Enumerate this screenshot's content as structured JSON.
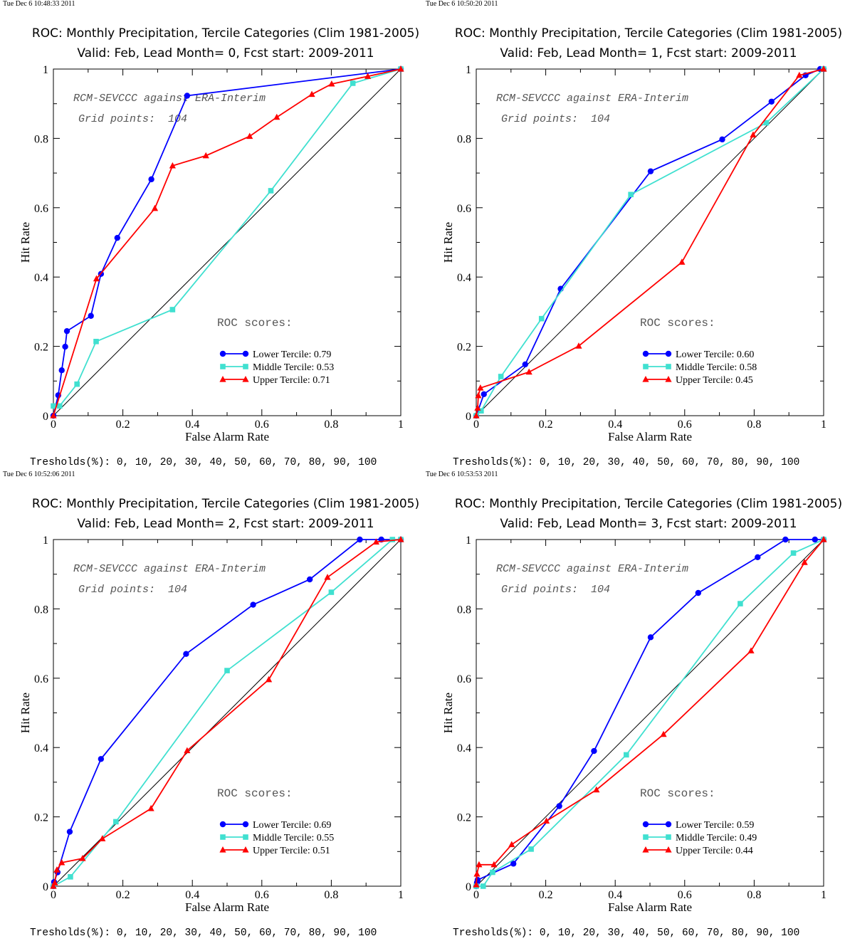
{
  "common": {
    "title_line1": "ROC: Monthly Precipitation, Tercile Categories (Clim 1981-2005)",
    "x_axis_label": "False Alarm Rate",
    "y_axis_label": "Hit Rate",
    "annotation_model": "RCM-SEVCCC against ERA-Interim",
    "annotation_grid": "Grid points:  104",
    "scores_heading": "ROC scores:",
    "thresholds_text": "Tresholds(%): 0, 10, 20, 30, 40, 50, 60, 70, 80, 90, 100",
    "x_ticks": [
      "0",
      "0.2",
      "0.4",
      "0.6",
      "0.8",
      "1"
    ],
    "y_ticks": [
      "0",
      "0.2",
      "0.4",
      "0.6",
      "0.8",
      "1"
    ],
    "colors": {
      "lower": "#0000ff",
      "middle": "#40e0d0",
      "upper": "#ff0000",
      "diagonal": "#000000"
    }
  },
  "panels": [
    {
      "timestamp": "Tue Dec  6 10:48:33 2011",
      "title_line2": "Valid: Feb, Lead Month= 0, Fcst start: 2009-2011",
      "legend": [
        "Lower Tercile: 0.79",
        "Middle Tercile: 0.53",
        "Upper Tercile: 0.71"
      ]
    },
    {
      "timestamp": "Tue Dec  6 10:50:20 2011",
      "title_line2": "Valid: Feb, Lead Month= 1, Fcst start: 2009-2011",
      "legend": [
        "Lower Tercile: 0.60",
        "Middle Tercile: 0.58",
        "Upper Tercile: 0.45"
      ]
    },
    {
      "timestamp": "Tue Dec  6 10:52:06 2011",
      "title_line2": "Valid: Feb, Lead Month= 2, Fcst start: 2009-2011",
      "legend": [
        "Lower Tercile: 0.69",
        "Middle Tercile: 0.55",
        "Upper Tercile: 0.51"
      ]
    },
    {
      "timestamp": "Tue Dec  6 10:53:53 2011",
      "title_line2": "Valid: Feb, Lead Month= 3, Fcst start: 2009-2011",
      "legend": [
        "Lower Tercile: 0.59",
        "Middle Tercile: 0.49",
        "Upper Tercile: 0.44"
      ]
    }
  ],
  "chart_data": [
    {
      "type": "line",
      "title": "ROC: Monthly Precipitation, Tercile Categories (Clim 1981-2005)",
      "subtitle": "Valid: Feb, Lead Month= 0, Fcst start: 2009-2011",
      "xlabel": "False Alarm Rate",
      "ylabel": "Hit Rate",
      "xlim": [
        0,
        1
      ],
      "ylim": [
        0,
        1
      ],
      "grid": false,
      "legend_position": "bottom-right",
      "series": [
        {
          "name": "Lower Tercile: 0.79",
          "marker": "circle",
          "x": [
            0,
            0.014,
            0.024,
            0.034,
            0.039,
            0.108,
            0.137,
            0.184,
            0.282,
            0.385,
            1.0
          ],
          "y": [
            0,
            0.059,
            0.131,
            0.199,
            0.244,
            0.288,
            0.409,
            0.513,
            0.682,
            0.923,
            1.0
          ]
        },
        {
          "name": "Middle Tercile: 0.53",
          "marker": "square",
          "x": [
            0,
            0.018,
            0.068,
            0.123,
            0.343,
            0.626,
            0.862,
            1.0
          ],
          "y": [
            0.028,
            0.028,
            0.091,
            0.214,
            0.306,
            0.649,
            0.959,
            1.0
          ]
        },
        {
          "name": "Upper Tercile: 0.71",
          "marker": "triangle",
          "x": [
            0,
            0.124,
            0.292,
            0.343,
            0.439,
            0.565,
            0.643,
            0.744,
            0.801,
            0.905,
            1.0
          ],
          "y": [
            0,
            0.395,
            0.598,
            0.721,
            0.75,
            0.806,
            0.861,
            0.927,
            0.957,
            0.979,
            1.0
          ]
        }
      ]
    },
    {
      "type": "line",
      "title": "ROC: Monthly Precipitation, Tercile Categories (Clim 1981-2005)",
      "subtitle": "Valid: Feb, Lead Month= 1, Fcst start: 2009-2011",
      "xlabel": "False Alarm Rate",
      "ylabel": "Hit Rate",
      "xlim": [
        0,
        1
      ],
      "ylim": [
        0,
        1
      ],
      "grid": false,
      "legend_position": "bottom-right",
      "series": [
        {
          "name": "Lower Tercile: 0.60",
          "marker": "circle",
          "x": [
            0,
            0.022,
            0.141,
            0.243,
            0.502,
            0.708,
            0.85,
            0.948,
            0.99,
            1.0
          ],
          "y": [
            0,
            0.062,
            0.148,
            0.366,
            0.705,
            0.797,
            0.906,
            0.982,
            1.0,
            1.0
          ]
        },
        {
          "name": "Middle Tercile: 0.58",
          "marker": "square",
          "x": [
            0,
            0.014,
            0.071,
            0.188,
            0.445,
            0.835,
            1.0
          ],
          "y": [
            0,
            0.014,
            0.113,
            0.28,
            0.638,
            0.845,
            1.0
          ]
        },
        {
          "name": "Upper Tercile: 0.45",
          "marker": "triangle",
          "x": [
            0,
            0.004,
            0.006,
            0.012,
            0.152,
            0.295,
            0.592,
            0.797,
            0.93,
            1.0
          ],
          "y": [
            0,
            0.022,
            0.058,
            0.08,
            0.126,
            0.201,
            0.443,
            0.81,
            0.982,
            1.0
          ]
        }
      ]
    },
    {
      "type": "line",
      "title": "ROC: Monthly Precipitation, Tercile Categories (Clim 1981-2005)",
      "subtitle": "Valid: Feb, Lead Month= 2, Fcst start: 2009-2011",
      "xlabel": "False Alarm Rate",
      "ylabel": "Hit Rate",
      "xlim": [
        0,
        1
      ],
      "ylim": [
        0,
        1
      ],
      "grid": false,
      "legend_position": "bottom-right",
      "series": [
        {
          "name": "Lower Tercile: 0.69",
          "marker": "circle",
          "x": [
            0,
            0.002,
            0.012,
            0.047,
            0.137,
            0.382,
            0.575,
            0.738,
            0.882,
            0.944,
            1.0
          ],
          "y": [
            0,
            0.012,
            0.04,
            0.157,
            0.367,
            0.67,
            0.812,
            0.885,
            1.0,
            1.0,
            1.0
          ]
        },
        {
          "name": "Middle Tercile: 0.55",
          "marker": "square",
          "x": [
            0,
            0.049,
            0.18,
            0.5,
            0.8,
            0.976,
            1.0
          ],
          "y": [
            0,
            0.027,
            0.186,
            0.622,
            0.848,
            1.0,
            1.0
          ]
        },
        {
          "name": "Upper Tercile: 0.51",
          "marker": "triangle",
          "x": [
            0,
            0.004,
            0.01,
            0.024,
            0.084,
            0.141,
            0.281,
            0.385,
            0.62,
            0.789,
            0.929,
            1.0
          ],
          "y": [
            0,
            0.01,
            0.047,
            0.068,
            0.08,
            0.137,
            0.224,
            0.391,
            0.596,
            0.891,
            0.993,
            1.0
          ]
        }
      ]
    },
    {
      "type": "line",
      "title": "ROC: Monthly Precipitation, Tercile Categories (Clim 1981-2005)",
      "subtitle": "Valid: Feb, Lead Month= 3, Fcst start: 2009-2011",
      "xlabel": "False Alarm Rate",
      "ylabel": "Hit Rate",
      "xlim": [
        0,
        1
      ],
      "ylim": [
        0,
        1
      ],
      "grid": false,
      "legend_position": "bottom-right",
      "series": [
        {
          "name": "Lower Tercile: 0.59",
          "marker": "circle",
          "x": [
            0,
            0.002,
            0.004,
            0.107,
            0.239,
            0.339,
            0.502,
            0.639,
            0.81,
            0.89,
            0.975,
            1.0
          ],
          "y": [
            0,
            0.01,
            0.018,
            0.065,
            0.231,
            0.39,
            0.718,
            0.846,
            0.949,
            1.0,
            1.0,
            1.0
          ]
        },
        {
          "name": "Middle Tercile: 0.49",
          "marker": "square",
          "x": [
            0,
            0.02,
            0.047,
            0.158,
            0.432,
            0.76,
            0.913,
            1.0
          ],
          "y": [
            0,
            0.0,
            0.04,
            0.107,
            0.379,
            0.815,
            0.961,
            1.0
          ]
        },
        {
          "name": "Upper Tercile: 0.44",
          "marker": "triangle",
          "x": [
            0,
            0.002,
            0.008,
            0.051,
            0.102,
            0.202,
            0.346,
            0.539,
            0.791,
            0.945,
            1.0
          ],
          "y": [
            0.004,
            0.035,
            0.062,
            0.062,
            0.12,
            0.188,
            0.278,
            0.438,
            0.679,
            0.934,
            1.0
          ]
        }
      ]
    }
  ]
}
